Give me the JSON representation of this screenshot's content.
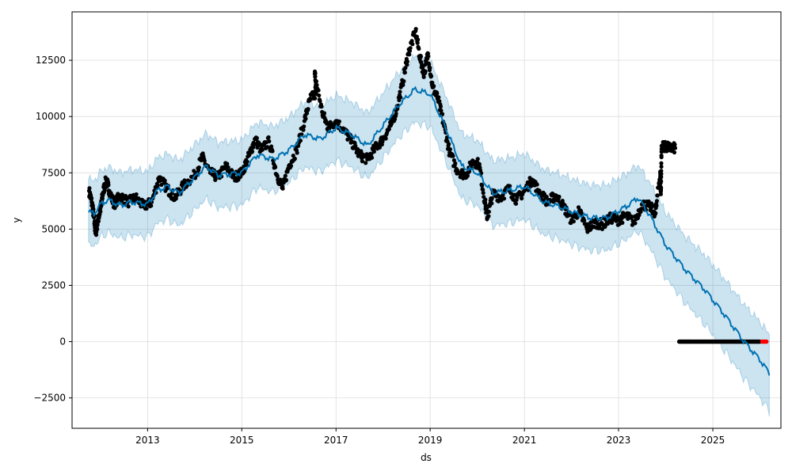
{
  "chart_data": {
    "type": "scatter",
    "xlabel": "ds",
    "ylabel": "y",
    "xlim": [
      "2011-05-26",
      "2026-06-13"
    ],
    "ylim": [
      -3850,
      14650
    ],
    "x_ticks": [
      "2013",
      "2015",
      "2017",
      "2019",
      "2021",
      "2023",
      "2025"
    ],
    "y_ticks": [
      -2500,
      0,
      2500,
      5000,
      7500,
      10000,
      12500
    ],
    "grid": true,
    "legend": "none",
    "colors": {
      "observed_points": "#000000",
      "recent_points": "#ff0000",
      "forecast_line": "#0072B2",
      "uncertainty_band": "#0072B2",
      "grid": "#dddddd"
    },
    "forecast_band_width": 1450,
    "forecast": [
      {
        "x": "2011-10-01",
        "y": 5750
      },
      {
        "x": "2011-11-15",
        "y": 5700
      },
      {
        "x": "2012-01-01",
        "y": 6100
      },
      {
        "x": "2012-03-01",
        "y": 6300
      },
      {
        "x": "2012-06-01",
        "y": 6050
      },
      {
        "x": "2012-09-01",
        "y": 6200
      },
      {
        "x": "2013-01-01",
        "y": 6100
      },
      {
        "x": "2013-03-15",
        "y": 6700
      },
      {
        "x": "2013-06-01",
        "y": 6900
      },
      {
        "x": "2013-09-01",
        "y": 6600
      },
      {
        "x": "2014-01-01",
        "y": 7300
      },
      {
        "x": "2014-04-01",
        "y": 7800
      },
      {
        "x": "2014-07-01",
        "y": 7400
      },
      {
        "x": "2015-01-01",
        "y": 7500
      },
      {
        "x": "2015-05-01",
        "y": 8300
      },
      {
        "x": "2015-09-01",
        "y": 8100
      },
      {
        "x": "2016-01-01",
        "y": 8500
      },
      {
        "x": "2016-05-01",
        "y": 9200
      },
      {
        "x": "2016-09-01",
        "y": 9000
      },
      {
        "x": "2017-01-01",
        "y": 9500
      },
      {
        "x": "2017-05-01",
        "y": 9200
      },
      {
        "x": "2017-09-01",
        "y": 8700
      },
      {
        "x": "2018-01-01",
        "y": 9600
      },
      {
        "x": "2018-05-01",
        "y": 10500
      },
      {
        "x": "2018-09-01",
        "y": 11200
      },
      {
        "x": "2019-01-01",
        "y": 11000
      },
      {
        "x": "2019-05-01",
        "y": 9500
      },
      {
        "x": "2019-09-01",
        "y": 7800
      },
      {
        "x": "2020-01-01",
        "y": 7500
      },
      {
        "x": "2020-05-01",
        "y": 6600
      },
      {
        "x": "2020-09-01",
        "y": 6700
      },
      {
        "x": "2021-01-01",
        "y": 6900
      },
      {
        "x": "2021-06-01",
        "y": 6200
      },
      {
        "x": "2021-10-01",
        "y": 6000
      },
      {
        "x": "2022-02-01",
        "y": 5700
      },
      {
        "x": "2022-06-01",
        "y": 5500
      },
      {
        "x": "2022-10-01",
        "y": 5500
      },
      {
        "x": "2023-03-01",
        "y": 6000
      },
      {
        "x": "2023-06-01",
        "y": 6400
      },
      {
        "x": "2023-09-01",
        "y": 5600
      },
      {
        "x": "2024-01-01",
        "y": 4300
      },
      {
        "x": "2024-06-01",
        "y": 3200
      },
      {
        "x": "2024-11-01",
        "y": 2300
      },
      {
        "x": "2025-04-01",
        "y": 1200
      },
      {
        "x": "2025-09-01",
        "y": 0
      },
      {
        "x": "2026-01-01",
        "y": -800
      },
      {
        "x": "2026-03-15",
        "y": -1400
      }
    ],
    "observed": [
      {
        "x": "2011-10-05",
        "y": 6700
      },
      {
        "x": "2011-10-25",
        "y": 6200
      },
      {
        "x": "2011-11-10",
        "y": 5600
      },
      {
        "x": "2011-11-25",
        "y": 4800
      },
      {
        "x": "2011-12-10",
        "y": 5300
      },
      {
        "x": "2012-01-05",
        "y": 6000
      },
      {
        "x": "2012-01-20",
        "y": 6600
      },
      {
        "x": "2012-02-15",
        "y": 7200
      },
      {
        "x": "2012-03-10",
        "y": 6700
      },
      {
        "x": "2012-04-15",
        "y": 6100
      },
      {
        "x": "2012-06-01",
        "y": 6500
      },
      {
        "x": "2012-08-01",
        "y": 6200
      },
      {
        "x": "2012-10-01",
        "y": 6400
      },
      {
        "x": "2012-12-01",
        "y": 6000
      },
      {
        "x": "2013-02-01",
        "y": 6200
      },
      {
        "x": "2013-04-01",
        "y": 7300
      },
      {
        "x": "2013-06-01",
        "y": 6800
      },
      {
        "x": "2013-08-01",
        "y": 6400
      },
      {
        "x": "2013-10-01",
        "y": 6900
      },
      {
        "x": "2014-01-01",
        "y": 7400
      },
      {
        "x": "2014-03-01",
        "y": 8200
      },
      {
        "x": "2014-05-01",
        "y": 7500
      },
      {
        "x": "2014-07-01",
        "y": 7300
      },
      {
        "x": "2014-09-01",
        "y": 7800
      },
      {
        "x": "2014-11-01",
        "y": 7300
      },
      {
        "x": "2015-01-01",
        "y": 7500
      },
      {
        "x": "2015-03-01",
        "y": 8300
      },
      {
        "x": "2015-04-15",
        "y": 9000
      },
      {
        "x": "2015-06-01",
        "y": 8500
      },
      {
        "x": "2015-08-01",
        "y": 8900
      },
      {
        "x": "2015-10-01",
        "y": 7400
      },
      {
        "x": "2015-11-15",
        "y": 6800
      },
      {
        "x": "2016-01-01",
        "y": 7800
      },
      {
        "x": "2016-03-01",
        "y": 8500
      },
      {
        "x": "2016-05-01",
        "y": 9800
      },
      {
        "x": "2016-06-15",
        "y": 10800
      },
      {
        "x": "2016-08-01",
        "y": 11000
      },
      {
        "x": "2016-07-20",
        "y": 11900
      },
      {
        "x": "2016-09-15",
        "y": 10200
      },
      {
        "x": "2016-11-01",
        "y": 9500
      },
      {
        "x": "2017-01-01",
        "y": 9800
      },
      {
        "x": "2017-03-01",
        "y": 9400
      },
      {
        "x": "2017-05-01",
        "y": 8900
      },
      {
        "x": "2017-07-01",
        "y": 8300
      },
      {
        "x": "2017-09-01",
        "y": 8100
      },
      {
        "x": "2017-11-01",
        "y": 8600
      },
      {
        "x": "2018-01-01",
        "y": 9000
      },
      {
        "x": "2018-03-01",
        "y": 9600
      },
      {
        "x": "2018-04-15",
        "y": 10300
      },
      {
        "x": "2018-06-01",
        "y": 11500
      },
      {
        "x": "2018-07-15",
        "y": 12800
      },
      {
        "x": "2018-09-10",
        "y": 13800
      },
      {
        "x": "2018-10-15",
        "y": 12600
      },
      {
        "x": "2018-11-15",
        "y": 11900
      },
      {
        "x": "2018-12-15",
        "y": 12800
      },
      {
        "x": "2019-01-20",
        "y": 11300
      },
      {
        "x": "2019-03-01",
        "y": 10800
      },
      {
        "x": "2019-04-15",
        "y": 9700
      },
      {
        "x": "2019-06-01",
        "y": 8400
      },
      {
        "x": "2019-08-01",
        "y": 7600
      },
      {
        "x": "2019-10-01",
        "y": 7400
      },
      {
        "x": "2019-12-01",
        "y": 8000
      },
      {
        "x": "2020-01-15",
        "y": 7900
      },
      {
        "x": "2020-03-01",
        "y": 6200
      },
      {
        "x": "2020-03-20",
        "y": 5500
      },
      {
        "x": "2020-05-01",
        "y": 6600
      },
      {
        "x": "2020-07-01",
        "y": 6400
      },
      {
        "x": "2020-09-01",
        "y": 6800
      },
      {
        "x": "2020-11-01",
        "y": 6300
      },
      {
        "x": "2021-01-01",
        "y": 6700
      },
      {
        "x": "2021-03-01",
        "y": 7200
      },
      {
        "x": "2021-05-01",
        "y": 6600
      },
      {
        "x": "2021-07-01",
        "y": 6200
      },
      {
        "x": "2021-09-01",
        "y": 6500
      },
      {
        "x": "2021-11-01",
        "y": 6000
      },
      {
        "x": "2022-01-01",
        "y": 5400
      },
      {
        "x": "2022-03-01",
        "y": 5800
      },
      {
        "x": "2022-05-01",
        "y": 5000
      },
      {
        "x": "2022-07-01",
        "y": 5300
      },
      {
        "x": "2022-09-01",
        "y": 5200
      },
      {
        "x": "2022-11-01",
        "y": 5500
      },
      {
        "x": "2023-01-01",
        "y": 5400
      },
      {
        "x": "2023-03-01",
        "y": 5600
      },
      {
        "x": "2023-05-01",
        "y": 5300
      },
      {
        "x": "2023-07-01",
        "y": 6100
      },
      {
        "x": "2023-09-01",
        "y": 6000
      },
      {
        "x": "2023-10-15",
        "y": 5700
      },
      {
        "x": "2023-11-20",
        "y": 7550
      },
      {
        "x": "2023-11-25",
        "y": 6550
      },
      {
        "x": "2023-12-01",
        "y": 8700
      },
      {
        "x": "2024-01-01",
        "y": 8650
      },
      {
        "x": "2024-02-01",
        "y": 8600
      },
      {
        "x": "2024-03-15",
        "y": 8600
      },
      {
        "x": "2024-04-15",
        "y": 0
      },
      {
        "x": "2024-07-01",
        "y": 0
      },
      {
        "x": "2024-10-01",
        "y": 0
      },
      {
        "x": "2025-01-01",
        "y": 0
      },
      {
        "x": "2025-04-01",
        "y": 0
      },
      {
        "x": "2025-07-01",
        "y": 0
      },
      {
        "x": "2025-10-01",
        "y": 0
      },
      {
        "x": "2026-01-01",
        "y": 0
      }
    ],
    "recent": [
      {
        "x": "2026-01-20",
        "y": 0
      },
      {
        "x": "2026-02-05",
        "y": 0
      },
      {
        "x": "2026-02-20",
        "y": 0
      }
    ]
  }
}
